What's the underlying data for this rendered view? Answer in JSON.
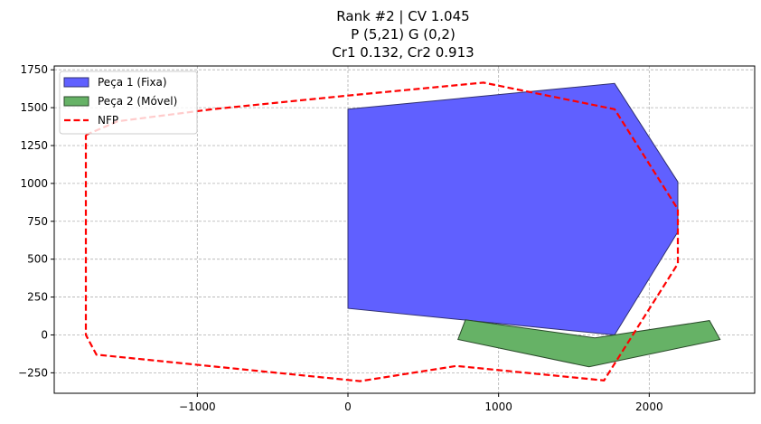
{
  "chart_data": {
    "type": "polygon-plot",
    "title_lines": [
      "Rank #2 | CV 1.045",
      "P (5,21) G (0,2)",
      "Cr1 0.132, Cr2 0.913"
    ],
    "xlim": [
      -1950,
      2700
    ],
    "ylim": [
      -385,
      1775
    ],
    "xticks": [
      -1000,
      0,
      1000,
      2000
    ],
    "xtick_labels": [
      "−1000",
      "0",
      "1000",
      "2000"
    ],
    "yticks": [
      -250,
      0,
      250,
      500,
      750,
      1000,
      1250,
      1500,
      1750
    ],
    "ytick_labels": [
      "−250",
      "0",
      "250",
      "500",
      "750",
      "1000",
      "1250",
      "1500",
      "1750"
    ],
    "grid": true,
    "legend_position": "upper-left",
    "series": [
      {
        "name": "Peça 1 (Fixa)",
        "kind": "filled-polygon",
        "fill": "#6060ff",
        "edge": "#303070",
        "points": [
          [
            0,
            1490
          ],
          [
            1770,
            1660
          ],
          [
            2190,
            1010
          ],
          [
            2190,
            680
          ],
          [
            1770,
            0
          ],
          [
            0,
            175
          ]
        ]
      },
      {
        "name": "Peça 2 (Móvel)",
        "kind": "filled-polygon",
        "fill": "#66b266",
        "edge": "#2a4a2a",
        "points": [
          [
            780,
            100
          ],
          [
            1640,
            -20
          ],
          [
            2400,
            95
          ],
          [
            2470,
            -30
          ],
          [
            1600,
            -210
          ],
          [
            730,
            -30
          ]
        ]
      },
      {
        "name": "NFP",
        "kind": "dashed-line",
        "color": "#ff0000",
        "points": [
          [
            -1740,
            1320
          ],
          [
            -1530,
            1410
          ],
          [
            -900,
            1490
          ],
          [
            0,
            1580
          ],
          [
            900,
            1665
          ],
          [
            1770,
            1490
          ],
          [
            2190,
            830
          ],
          [
            2190,
            470
          ],
          [
            1700,
            -300
          ],
          [
            720,
            -205
          ],
          [
            80,
            -305
          ],
          [
            -1670,
            -130
          ],
          [
            -1740,
            0
          ],
          [
            -1740,
            1320
          ]
        ]
      }
    ]
  }
}
